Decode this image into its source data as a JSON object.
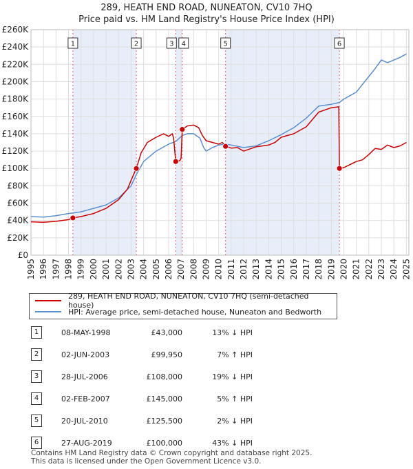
{
  "header": {
    "title_line1": "289, HEATH END ROAD, NUNEATON, CV10 7HQ",
    "title_line2": "Price paid vs. HM Land Registry's House Price Index (HPI)"
  },
  "chart_data": {
    "type": "line",
    "title": "289, HEATH END ROAD, NUNEATON, CV10 7HQ — Price paid vs. HM Land Registry's House Price Index (HPI)",
    "xlim": [
      1995,
      2025.2
    ],
    "ylim": [
      0,
      260000
    ],
    "x_ticks": [
      "1995",
      "1996",
      "1997",
      "1998",
      "1999",
      "2000",
      "2001",
      "2002",
      "2003",
      "2004",
      "2005",
      "2006",
      "2007",
      "2008",
      "2009",
      "2010",
      "2011",
      "2012",
      "2013",
      "2014",
      "2015",
      "2016",
      "2017",
      "2018",
      "2019",
      "2020",
      "2021",
      "2022",
      "2023",
      "2024",
      "2025"
    ],
    "y_ticks": [
      {
        "value": 0,
        "label": "£0"
      },
      {
        "value": 20000,
        "label": "£20K"
      },
      {
        "value": 40000,
        "label": "£40K"
      },
      {
        "value": 60000,
        "label": "£60K"
      },
      {
        "value": 80000,
        "label": "£80K"
      },
      {
        "value": 100000,
        "label": "£100K"
      },
      {
        "value": 120000,
        "label": "£120K"
      },
      {
        "value": 140000,
        "label": "£140K"
      },
      {
        "value": 160000,
        "label": "£160K"
      },
      {
        "value": 180000,
        "label": "£180K"
      },
      {
        "value": 200000,
        "label": "£200K"
      },
      {
        "value": 220000,
        "label": "£220K"
      },
      {
        "value": 240000,
        "label": "£240K"
      },
      {
        "value": 260000,
        "label": "£260K"
      }
    ],
    "grid": true,
    "colors": {
      "property": "#cc0000",
      "hpi": "#5b8fd0",
      "shade": "#e8eef9",
      "vline": "#e06070",
      "grid": "#dddddd"
    },
    "shaded_ranges": [
      [
        1998.35,
        2003.42
      ],
      [
        2006.57,
        2007.09
      ],
      [
        2010.55,
        2019.65
      ]
    ],
    "series": [
      {
        "name": "289, HEATH END ROAD, NUNEATON, CV10 7HQ (semi-detached house)",
        "color": "#cc0000",
        "points": [
          [
            1995,
            38500
          ],
          [
            1996,
            38000
          ],
          [
            1997,
            39000
          ],
          [
            1998.0,
            41000
          ],
          [
            1998.35,
            43000
          ],
          [
            1999,
            44500
          ],
          [
            2000,
            48000
          ],
          [
            2001,
            54000
          ],
          [
            2002,
            64000
          ],
          [
            2002.7,
            76000
          ],
          [
            2003.2,
            93000
          ],
          [
            2003.42,
            99950
          ],
          [
            2003.8,
            118000
          ],
          [
            2004.3,
            130000
          ],
          [
            2005,
            136000
          ],
          [
            2005.6,
            140000
          ],
          [
            2006,
            137000
          ],
          [
            2006.3,
            140000
          ],
          [
            2006.4,
            135000
          ],
          [
            2006.57,
            108000
          ],
          [
            2006.9,
            109000
          ],
          [
            2007.0,
            112000
          ],
          [
            2007.09,
            145000
          ],
          [
            2007.5,
            149000
          ],
          [
            2008,
            150000
          ],
          [
            2008.4,
            147000
          ],
          [
            2008.7,
            138000
          ],
          [
            2009,
            132000
          ],
          [
            2009.5,
            130000
          ],
          [
            2010,
            128000
          ],
          [
            2010.3,
            130000
          ],
          [
            2010.55,
            125500
          ],
          [
            2011,
            123500
          ],
          [
            2011.5,
            124000
          ],
          [
            2012,
            120000
          ],
          [
            2013,
            125000
          ],
          [
            2014,
            127000
          ],
          [
            2014.5,
            130000
          ],
          [
            2015,
            136000
          ],
          [
            2016,
            140000
          ],
          [
            2017,
            148000
          ],
          [
            2018,
            165000
          ],
          [
            2019,
            170000
          ],
          [
            2019.6,
            171000
          ],
          [
            2019.65,
            100000
          ],
          [
            2020,
            101000
          ],
          [
            2021,
            108000
          ],
          [
            2021.5,
            110000
          ],
          [
            2022,
            116000
          ],
          [
            2022.5,
            123000
          ],
          [
            2023,
            122000
          ],
          [
            2023.5,
            127000
          ],
          [
            2024,
            124000
          ],
          [
            2024.5,
            126000
          ],
          [
            2025,
            130000
          ]
        ]
      },
      {
        "name": "HPI: Average price, semi-detached house, Nuneaton and Bedworth",
        "color": "#5b8fd0",
        "points": [
          [
            1995,
            44500
          ],
          [
            1996,
            44000
          ],
          [
            1997,
            45500
          ],
          [
            1998,
            48000
          ],
          [
            1999,
            50000
          ],
          [
            2000,
            54000
          ],
          [
            2001,
            58000
          ],
          [
            2002,
            66000
          ],
          [
            2003,
            80000
          ],
          [
            2003.42,
            93000
          ],
          [
            2004,
            108000
          ],
          [
            2005,
            120000
          ],
          [
            2006,
            128000
          ],
          [
            2006.57,
            131000
          ],
          [
            2007.09,
            138000
          ],
          [
            2007.5,
            140000
          ],
          [
            2008,
            140000
          ],
          [
            2008.5,
            135000
          ],
          [
            2008.8,
            124000
          ],
          [
            2009,
            120000
          ],
          [
            2009.5,
            124000
          ],
          [
            2010,
            127000
          ],
          [
            2010.55,
            128000
          ],
          [
            2011,
            127000
          ],
          [
            2012,
            124000
          ],
          [
            2013,
            126000
          ],
          [
            2014,
            132000
          ],
          [
            2015,
            139000
          ],
          [
            2016,
            147000
          ],
          [
            2017,
            158000
          ],
          [
            2018,
            172000
          ],
          [
            2019,
            174000
          ],
          [
            2019.65,
            176000
          ],
          [
            2020,
            180000
          ],
          [
            2021,
            188000
          ],
          [
            2022,
            206000
          ],
          [
            2022.5,
            215000
          ],
          [
            2023,
            225000
          ],
          [
            2023.5,
            222000
          ],
          [
            2024,
            225000
          ],
          [
            2024.5,
            228000
          ],
          [
            2025,
            232000
          ]
        ]
      }
    ],
    "sales": [
      {
        "id": "1",
        "x": 1998.35,
        "price": 43000
      },
      {
        "id": "2",
        "x": 2003.42,
        "price": 99950
      },
      {
        "id": "3",
        "x": 2006.57,
        "price": 108000
      },
      {
        "id": "4",
        "x": 2007.09,
        "price": 145000
      },
      {
        "id": "5",
        "x": 2010.55,
        "price": 125500
      },
      {
        "id": "6",
        "x": 2019.65,
        "price": 100000
      }
    ]
  },
  "legend": {
    "property_label": "289, HEATH END ROAD, NUNEATON, CV10 7HQ (semi-detached house)",
    "hpi_label": "HPI: Average price, semi-detached house, Nuneaton and Bedworth"
  },
  "transactions": [
    {
      "num": "1",
      "date": "08-MAY-1998",
      "price": "£43,000",
      "hpi": "13% ↓ HPI"
    },
    {
      "num": "2",
      "date": "02-JUN-2003",
      "price": "£99,950",
      "hpi": "7% ↑ HPI"
    },
    {
      "num": "3",
      "date": "28-JUL-2006",
      "price": "£108,000",
      "hpi": "19% ↓ HPI"
    },
    {
      "num": "4",
      "date": "02-FEB-2007",
      "price": "£145,000",
      "hpi": "5% ↑ HPI"
    },
    {
      "num": "5",
      "date": "20-JUL-2010",
      "price": "£125,500",
      "hpi": "2% ↓ HPI"
    },
    {
      "num": "6",
      "date": "27-AUG-2019",
      "price": "£100,000",
      "hpi": "43% ↓ HPI"
    }
  ],
  "footer": {
    "line1": "Contains HM Land Registry data © Crown copyright and database right 2025.",
    "line2": "This data is licensed under the Open Government Licence v3.0."
  }
}
